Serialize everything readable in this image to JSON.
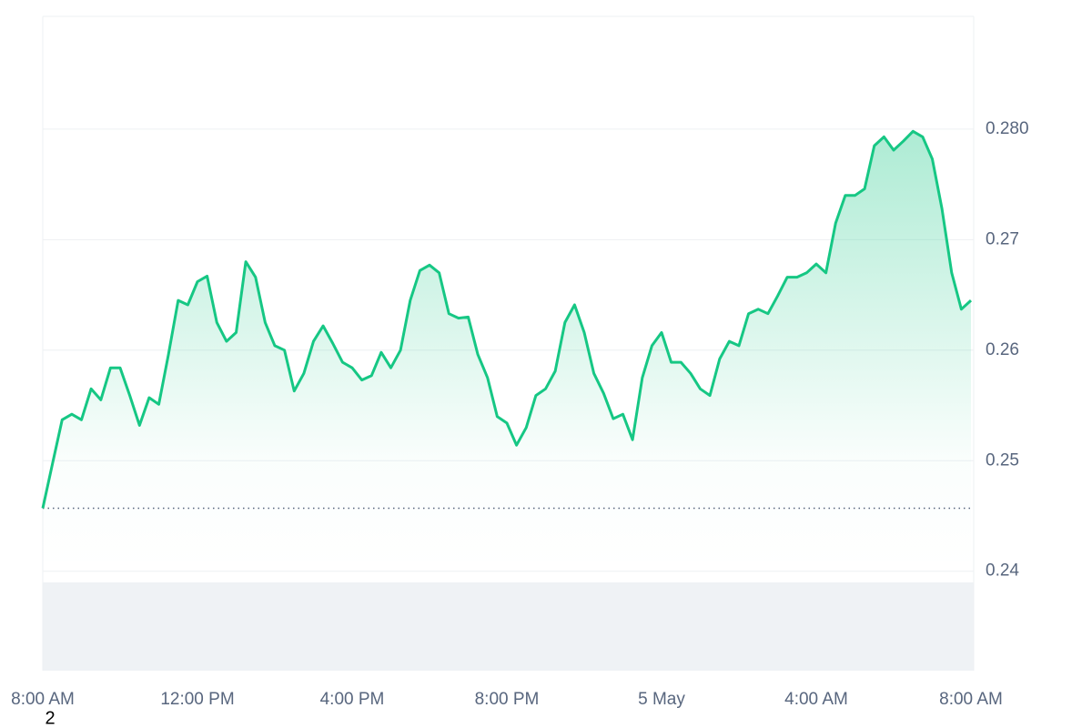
{
  "chart_data": {
    "type": "area",
    "color": "#16c784",
    "xlim": [
      0,
      24
    ],
    "xticks": [
      {
        "value": 0,
        "label": "8:00 AM"
      },
      {
        "value": 4,
        "label": "12:00 PM"
      },
      {
        "value": 8,
        "label": "4:00 PM"
      },
      {
        "value": 12,
        "label": "8:00 PM"
      },
      {
        "value": 16,
        "label": "5 May"
      },
      {
        "value": 20,
        "label": "4:00 AM"
      },
      {
        "value": 24,
        "label": "8:00 AM"
      }
    ],
    "ylim": [
      0.231,
      0.2902
    ],
    "yticks": [
      {
        "value": 0.28,
        "label": "0.280"
      },
      0.27,
      0.26,
      0.25,
      0.24
    ],
    "grid": true,
    "baseline": 0.2457,
    "footnote": "2",
    "x": [
      0,
      0.25,
      0.5,
      0.75,
      1,
      1.25,
      1.5,
      1.75,
      2,
      2.25,
      2.5,
      2.75,
      3,
      3.25,
      3.5,
      3.75,
      4,
      4.25,
      4.5,
      4.75,
      5,
      5.25,
      5.5,
      5.75,
      6,
      6.25,
      6.5,
      6.75,
      7,
      7.25,
      7.5,
      7.75,
      8,
      8.25,
      8.5,
      8.75,
      9,
      9.25,
      9.5,
      9.75,
      10,
      10.25,
      10.5,
      10.75,
      11,
      11.25,
      11.5,
      11.75,
      12,
      12.25,
      12.5,
      12.75,
      13,
      13.25,
      13.5,
      13.75,
      14,
      14.25,
      14.5,
      14.75,
      15,
      15.25,
      15.5,
      15.75,
      16,
      16.25,
      16.5,
      16.75,
      17,
      17.25,
      17.5,
      17.75,
      18,
      18.25,
      18.5,
      18.75,
      19,
      19.25,
      19.5,
      19.75,
      20,
      20.25,
      20.5,
      20.75,
      21,
      21.25,
      21.5,
      21.75,
      22,
      22.25,
      22.5,
      22.75,
      23,
      23.25,
      23.5,
      23.75,
      24
    ],
    "values": [
      0.2457,
      0.2497,
      0.2537,
      0.2542,
      0.2537,
      0.2565,
      0.2555,
      0.2584,
      0.2584,
      0.2559,
      0.2532,
      0.2557,
      0.2551,
      0.2596,
      0.2645,
      0.2641,
      0.2662,
      0.2667,
      0.2625,
      0.2608,
      0.2616,
      0.268,
      0.2666,
      0.2625,
      0.2604,
      0.26,
      0.2563,
      0.2579,
      0.2608,
      0.2622,
      0.2606,
      0.2589,
      0.2584,
      0.2573,
      0.2577,
      0.2598,
      0.2584,
      0.26,
      0.2645,
      0.2672,
      0.2677,
      0.267,
      0.2633,
      0.2629,
      0.263,
      0.2596,
      0.2575,
      0.254,
      0.2534,
      0.2514,
      0.253,
      0.2559,
      0.2565,
      0.2581,
      0.2625,
      0.2641,
      0.2616,
      0.2579,
      0.2561,
      0.2538,
      0.2542,
      0.2519,
      0.2575,
      0.2604,
      0.2616,
      0.2589,
      0.2589,
      0.2579,
      0.2565,
      0.2559,
      0.2592,
      0.2608,
      0.2604,
      0.2633,
      0.2637,
      0.2633,
      0.2649,
      0.2666,
      0.2666,
      0.267,
      0.2678,
      0.267,
      0.2715,
      0.274,
      0.274,
      0.2746,
      0.2785,
      0.2793,
      0.2781,
      0.2789,
      0.2798,
      0.2793,
      0.2773,
      0.2728,
      0.267,
      0.2637,
      0.2645
    ]
  }
}
